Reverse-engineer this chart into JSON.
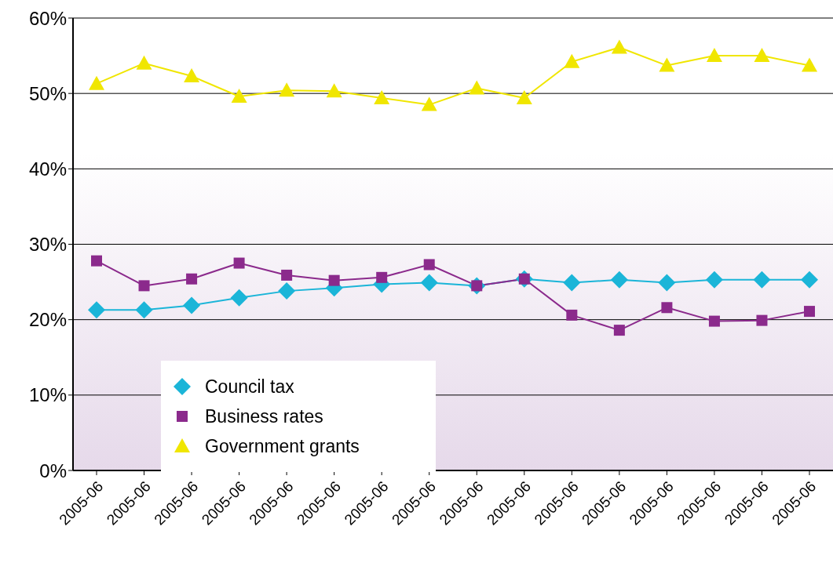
{
  "chart_data": {
    "type": "line",
    "categories": [
      "2005-06",
      "2005-06",
      "2005-06",
      "2005-06",
      "2005-06",
      "2005-06",
      "2005-06",
      "2005-06",
      "2005-06",
      "2005-06",
      "2005-06",
      "2005-06",
      "2005-06",
      "2005-06",
      "2005-06",
      "2005-06"
    ],
    "series": [
      {
        "name": "Council tax",
        "color": "#1bb5d8",
        "marker": "diamond",
        "values": [
          21.3,
          21.3,
          21.9,
          22.9,
          23.8,
          24.2,
          24.7,
          24.9,
          24.5,
          25.4,
          24.9,
          25.3,
          24.9,
          25.3,
          25.3,
          25.3
        ]
      },
      {
        "name": "Business rates",
        "color": "#8b2a8c",
        "marker": "square",
        "values": [
          27.8,
          24.5,
          25.4,
          27.5,
          25.9,
          25.2,
          25.6,
          27.3,
          24.5,
          25.4,
          20.6,
          18.6,
          21.6,
          19.8,
          19.9,
          21.1
        ]
      },
      {
        "name": "Government grants",
        "color": "#f0e600",
        "marker": "triangle",
        "values": [
          51.3,
          54.0,
          52.3,
          49.6,
          50.4,
          50.3,
          49.4,
          48.5,
          50.7,
          49.4,
          54.2,
          56.1,
          53.7,
          55.0,
          55.0,
          53.7
        ]
      }
    ],
    "ylim": [
      0,
      60
    ],
    "yticks": [
      {
        "value": 0,
        "label": "0%"
      },
      {
        "value": 10,
        "label": "10%"
      },
      {
        "value": 20,
        "label": "20%"
      },
      {
        "value": 30,
        "label": "30%"
      },
      {
        "value": 40,
        "label": "40%"
      },
      {
        "value": 50,
        "label": "50%"
      },
      {
        "value": 60,
        "label": "60%"
      }
    ],
    "grid": "y",
    "legend": "bottom left",
    "line_style": "solid"
  }
}
